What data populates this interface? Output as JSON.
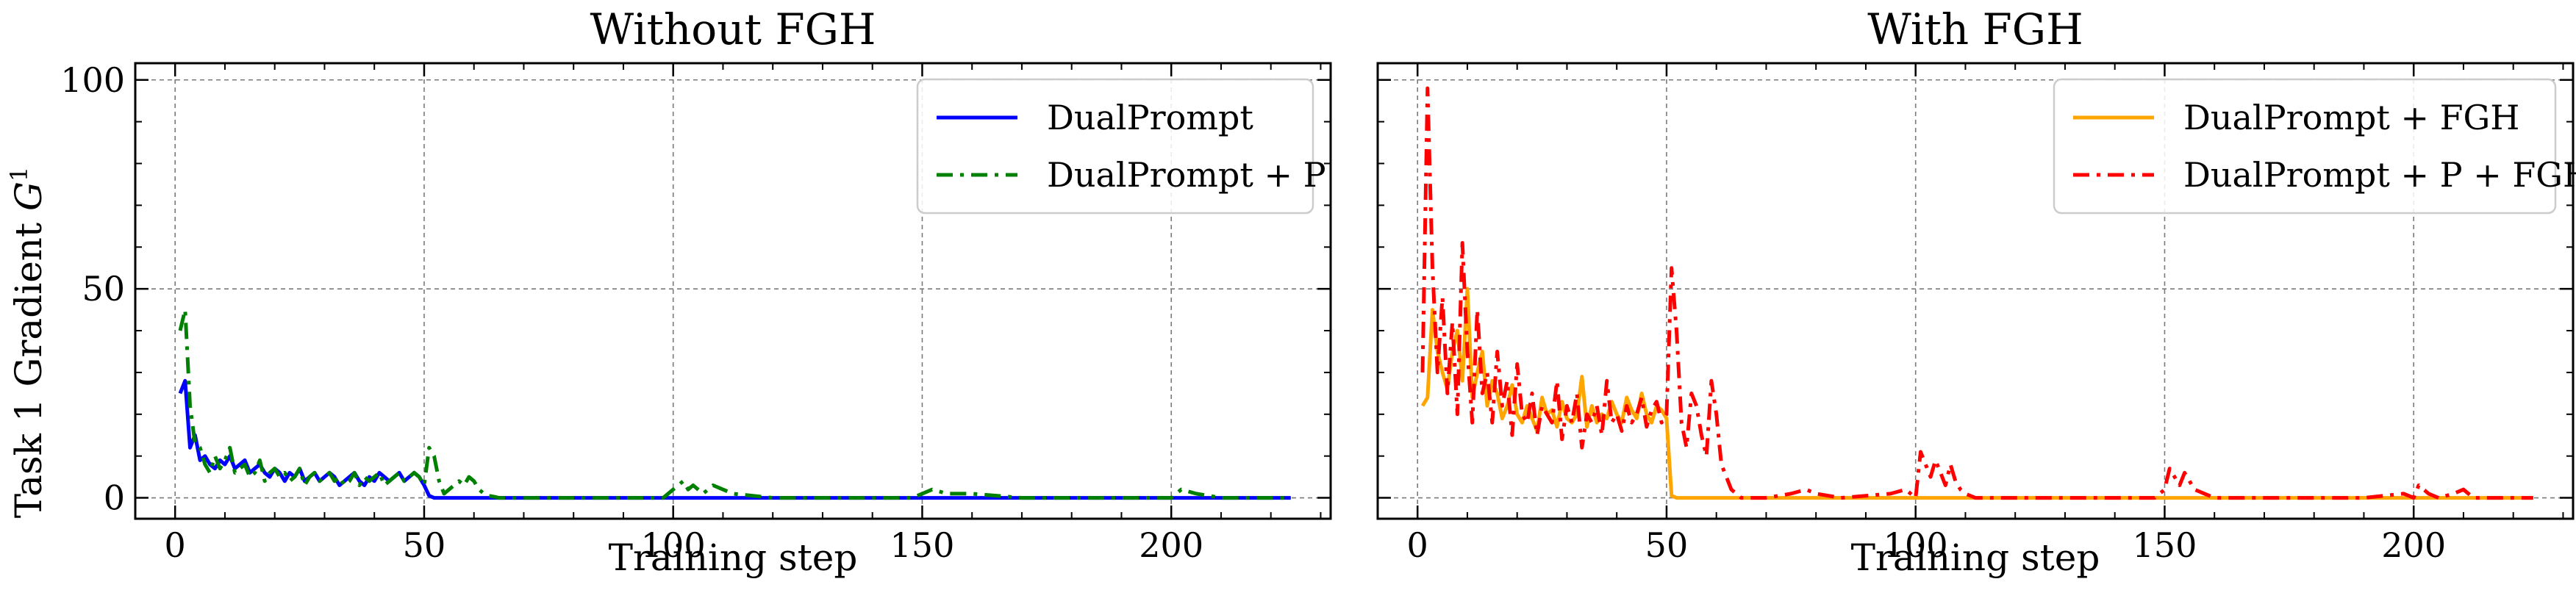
{
  "chart_data": [
    {
      "type": "line",
      "title": "Without FGH",
      "xlabel": "Training step",
      "ylabel": "Task 1 Gradient G¹",
      "xlim": [
        -8,
        232
      ],
      "ylim": [
        -5,
        104
      ],
      "xticks": [
        0,
        50,
        100,
        150,
        200
      ],
      "yticks": [
        0,
        50,
        100
      ],
      "grid": true,
      "legend_position": "top-right",
      "series": [
        {
          "name": "DualPrompt",
          "color": "#0000ff",
          "style": "solid",
          "x": [
            1,
            2,
            3,
            4,
            5,
            6,
            7,
            8,
            9,
            10,
            11,
            12,
            13,
            14,
            15,
            16,
            17,
            18,
            19,
            20,
            21,
            22,
            23,
            24,
            25,
            26,
            27,
            28,
            29,
            30,
            31,
            32,
            33,
            34,
            35,
            36,
            37,
            38,
            39,
            40,
            41,
            42,
            43,
            44,
            45,
            46,
            47,
            48,
            49,
            50,
            51,
            52,
            55,
            60,
            70,
            100,
            150,
            200,
            224
          ],
          "y": [
            25,
            28,
            12,
            15,
            9,
            10,
            8,
            7,
            9,
            8,
            10,
            7,
            8,
            9,
            6,
            7,
            8,
            6,
            5,
            7,
            6,
            4,
            6,
            5,
            7,
            4,
            5,
            6,
            4,
            5,
            6,
            5,
            3,
            4,
            5,
            6,
            4,
            3,
            5,
            4,
            6,
            5,
            4,
            5,
            6,
            4,
            5,
            6,
            5,
            3,
            0.5,
            0,
            0,
            0,
            0,
            0,
            0,
            0,
            0
          ]
        },
        {
          "name": "DualPrompt + P",
          "color": "#008000",
          "style": "dashdot",
          "x": [
            1,
            2,
            3,
            4,
            5,
            6,
            7,
            8,
            9,
            10,
            11,
            12,
            13,
            14,
            15,
            16,
            17,
            18,
            19,
            20,
            21,
            22,
            23,
            24,
            25,
            26,
            27,
            28,
            29,
            30,
            31,
            32,
            33,
            34,
            35,
            36,
            37,
            38,
            39,
            40,
            41,
            42,
            43,
            44,
            45,
            46,
            47,
            48,
            49,
            50,
            51,
            52,
            53,
            54,
            55,
            56,
            57,
            58,
            59,
            60,
            61,
            62,
            63,
            64,
            65,
            70,
            80,
            90,
            98,
            100,
            101,
            102,
            103,
            104,
            105,
            106,
            108,
            110,
            112,
            120,
            140,
            148,
            150,
            152,
            155,
            160,
            170,
            190,
            200,
            201,
            202,
            205,
            210,
            224
          ],
          "y": [
            40,
            45,
            22,
            13,
            12,
            8,
            6,
            10,
            7,
            9,
            12,
            6,
            7,
            8,
            5,
            6,
            9,
            4,
            6,
            7,
            5,
            6,
            4,
            5,
            7,
            3,
            5,
            6,
            4,
            5,
            6,
            4,
            5,
            3,
            4,
            6,
            3,
            5,
            4,
            5,
            6,
            3,
            4,
            5,
            6,
            4,
            5,
            6,
            5,
            3,
            12,
            10,
            4,
            1,
            2,
            3,
            4,
            3,
            5,
            4,
            2,
            1,
            0.5,
            0.3,
            0,
            0,
            0,
            0,
            0,
            2,
            3,
            4,
            2,
            3,
            2,
            1,
            3,
            2,
            1,
            0,
            0,
            0,
            1,
            2,
            1,
            1,
            0,
            0,
            0,
            1,
            2,
            1,
            0,
            0
          ]
        }
      ]
    },
    {
      "type": "line",
      "title": "With FGH",
      "xlabel": "Training step",
      "xlim": [
        -8,
        232
      ],
      "ylim": [
        -5,
        104
      ],
      "xticks": [
        0,
        50,
        100,
        150,
        200
      ],
      "yticks": [
        0,
        50,
        100
      ],
      "grid": true,
      "legend_position": "top-right",
      "series": [
        {
          "name": "DualPrompt + FGH",
          "color": "#ffa500",
          "style": "solid",
          "x": [
            1,
            2,
            3,
            4,
            5,
            6,
            7,
            8,
            9,
            10,
            11,
            12,
            13,
            14,
            15,
            16,
            17,
            18,
            19,
            20,
            21,
            22,
            23,
            24,
            25,
            26,
            27,
            28,
            29,
            30,
            31,
            32,
            33,
            34,
            35,
            36,
            37,
            38,
            39,
            40,
            41,
            42,
            43,
            44,
            45,
            46,
            47,
            48,
            49,
            50,
            51,
            52,
            60,
            100,
            150,
            200,
            224
          ],
          "y": [
            22,
            24,
            45,
            35,
            30,
            26,
            35,
            40,
            28,
            50,
            24,
            30,
            35,
            22,
            28,
            25,
            19,
            22,
            27,
            20,
            18,
            22,
            19,
            16,
            24,
            20,
            21,
            17,
            23,
            19,
            18,
            20,
            29,
            17,
            22,
            18,
            20,
            19,
            23,
            20,
            18,
            24,
            21,
            19,
            25,
            20,
            18,
            22,
            21,
            19,
            0.5,
            0,
            0,
            0,
            0,
            0,
            0
          ]
        },
        {
          "name": "DualPrompt + P + FGH",
          "color": "#ff0000",
          "style": "dashdot",
          "x": [
            1,
            2,
            3,
            4,
            5,
            6,
            7,
            8,
            9,
            10,
            11,
            12,
            13,
            14,
            15,
            16,
            17,
            18,
            19,
            20,
            21,
            22,
            23,
            24,
            25,
            26,
            27,
            28,
            29,
            30,
            31,
            32,
            33,
            34,
            35,
            36,
            37,
            38,
            39,
            40,
            41,
            42,
            43,
            44,
            45,
            46,
            47,
            48,
            49,
            50,
            51,
            52,
            53,
            54,
            55,
            56,
            57,
            58,
            59,
            60,
            61,
            62,
            63,
            64,
            65,
            70,
            75,
            78,
            80,
            85,
            95,
            98,
            100,
            101,
            102,
            103,
            104,
            105,
            106,
            107,
            108,
            109,
            110,
            112,
            120,
            148,
            150,
            151,
            152,
            153,
            154,
            155,
            156,
            158,
            160,
            190,
            198,
            200,
            201,
            202,
            203,
            205,
            208,
            210,
            212,
            224
          ],
          "y": [
            30,
            98,
            55,
            30,
            48,
            25,
            42,
            20,
            61,
            35,
            18,
            45,
            25,
            30,
            18,
            35,
            22,
            28,
            15,
            32,
            20,
            18,
            25,
            15,
            22,
            20,
            18,
            28,
            14,
            22,
            18,
            25,
            12,
            20,
            18,
            22,
            15,
            28,
            18,
            20,
            16,
            22,
            18,
            20,
            24,
            17,
            21,
            23,
            18,
            20,
            55,
            40,
            18,
            12,
            25,
            22,
            15,
            10,
            28,
            20,
            8,
            5,
            2,
            1,
            0,
            0,
            1,
            2,
            1,
            0,
            1,
            2,
            0,
            11,
            8,
            5,
            9,
            6,
            3,
            8,
            4,
            2,
            1,
            0,
            0,
            0,
            2,
            7,
            5,
            3,
            6,
            4,
            2,
            1,
            0,
            0,
            1,
            0,
            3,
            2,
            1,
            0,
            1,
            2,
            0,
            0
          ]
        }
      ]
    }
  ]
}
